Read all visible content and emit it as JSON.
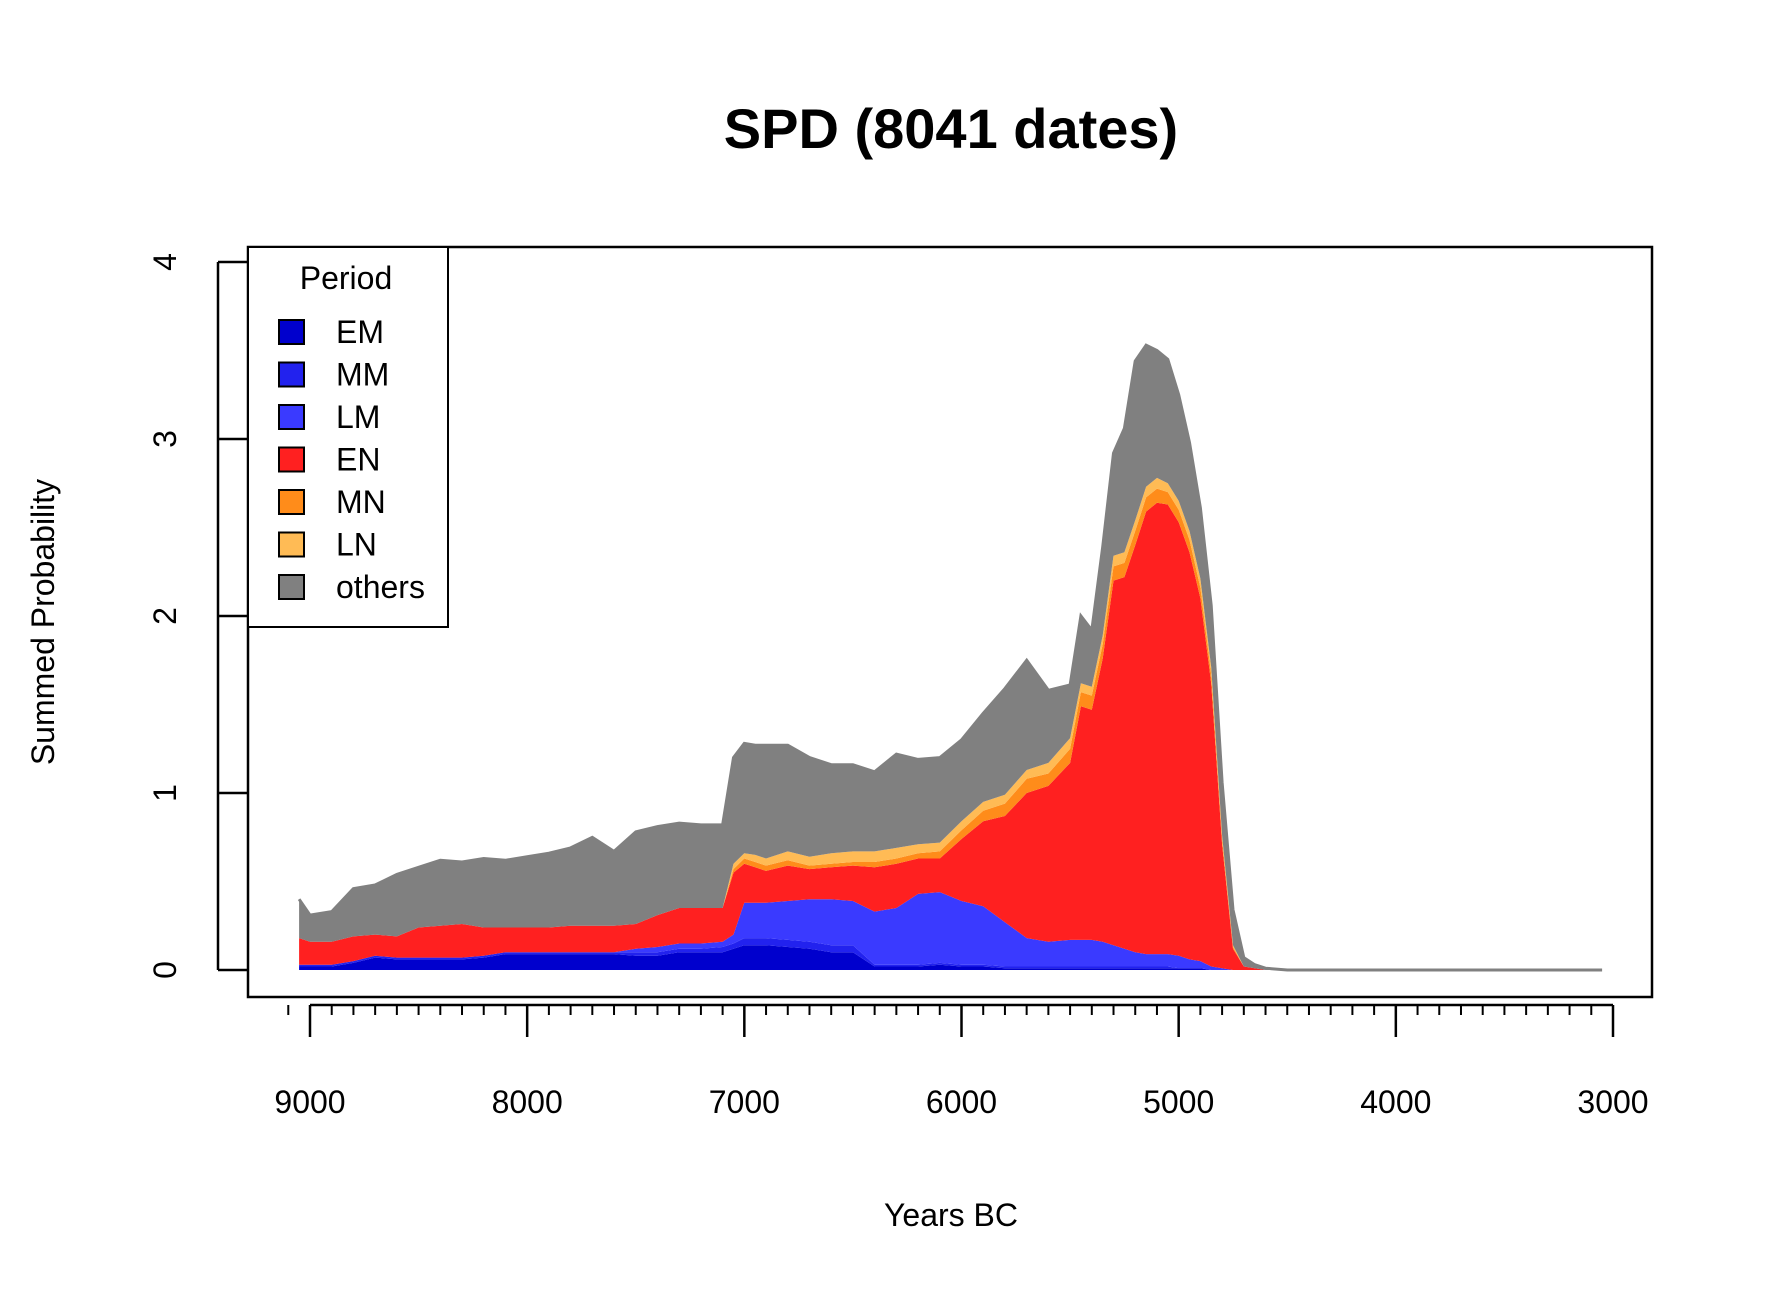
{
  "chart_data": {
    "type": "area",
    "stacked": true,
    "title": "SPD (8041 dates)",
    "xlabel": "Years BC",
    "ylabel": "Summed Probability",
    "xlim": [
      9250,
      2950
    ],
    "ylim": [
      0,
      4
    ],
    "x_ticks": [
      9000,
      8000,
      7000,
      6000,
      5000,
      4000,
      3000
    ],
    "x_tick_labels": [
      "9000",
      "8000",
      "7000",
      "6000",
      "5000",
      "4000",
      "3000"
    ],
    "y_ticks": [
      0,
      1,
      2,
      3,
      4
    ],
    "y_tick_labels": [
      "0",
      "1",
      "2",
      "3",
      "4"
    ],
    "x_minor_tick_step": 100,
    "legend": {
      "title": "Period",
      "position": "top-left"
    },
    "x": [
      9050,
      9000,
      8900,
      8800,
      8700,
      8600,
      8500,
      8400,
      8300,
      8200,
      8100,
      8000,
      7900,
      7800,
      7700,
      7600,
      7500,
      7400,
      7300,
      7200,
      7100,
      7050,
      7000,
      6950,
      6900,
      6800,
      6700,
      6600,
      6500,
      6400,
      6300,
      6200,
      6100,
      6000,
      5900,
      5800,
      5700,
      5600,
      5500,
      5450,
      5400,
      5350,
      5300,
      5250,
      5200,
      5150,
      5100,
      5050,
      5000,
      4950,
      4900,
      4850,
      4800,
      4750,
      4700,
      4650,
      4600,
      4500,
      4000,
      3500,
      3050
    ],
    "series": [
      {
        "name": "EM",
        "color": "#0000CD",
        "values": [
          0.02,
          0.02,
          0.02,
          0.04,
          0.07,
          0.06,
          0.06,
          0.06,
          0.06,
          0.07,
          0.09,
          0.09,
          0.09,
          0.09,
          0.09,
          0.09,
          0.08,
          0.08,
          0.1,
          0.1,
          0.1,
          0.12,
          0.14,
          0.14,
          0.14,
          0.13,
          0.12,
          0.1,
          0.1,
          0.02,
          0.02,
          0.02,
          0.03,
          0.02,
          0.02,
          0.01,
          0.01,
          0.01,
          0.01,
          0.01,
          0.01,
          0.01,
          0.01,
          0.01,
          0.01,
          0.01,
          0.01,
          0.01,
          0.01,
          0.01,
          0.01,
          0.0,
          0.0,
          0.0,
          0.0,
          0.0,
          0.0,
          0.0,
          0.0,
          0.0,
          0.0
        ]
      },
      {
        "name": "MM",
        "color": "#2222EE",
        "values": [
          0.01,
          0.01,
          0.01,
          0.01,
          0.01,
          0.01,
          0.01,
          0.01,
          0.01,
          0.01,
          0.01,
          0.01,
          0.01,
          0.01,
          0.01,
          0.01,
          0.02,
          0.02,
          0.02,
          0.02,
          0.03,
          0.03,
          0.04,
          0.04,
          0.04,
          0.04,
          0.04,
          0.04,
          0.04,
          0.01,
          0.01,
          0.01,
          0.01,
          0.01,
          0.01,
          0.01,
          0.01,
          0.01,
          0.01,
          0.01,
          0.01,
          0.01,
          0.01,
          0.01,
          0.01,
          0.01,
          0.01,
          0.01,
          0.0,
          0.0,
          0.0,
          0.0,
          0.0,
          0.0,
          0.0,
          0.0,
          0.0,
          0.0,
          0.0,
          0.0,
          0.0
        ]
      },
      {
        "name": "LM",
        "color": "#3A3AFF",
        "values": [
          0.0,
          0.0,
          0.0,
          0.0,
          0.0,
          0.0,
          0.0,
          0.0,
          0.0,
          0.0,
          0.0,
          0.0,
          0.0,
          0.0,
          0.0,
          0.0,
          0.02,
          0.03,
          0.03,
          0.03,
          0.03,
          0.05,
          0.2,
          0.2,
          0.2,
          0.22,
          0.24,
          0.26,
          0.25,
          0.3,
          0.32,
          0.4,
          0.4,
          0.36,
          0.33,
          0.25,
          0.16,
          0.14,
          0.15,
          0.15,
          0.15,
          0.14,
          0.12,
          0.1,
          0.08,
          0.07,
          0.07,
          0.07,
          0.07,
          0.05,
          0.04,
          0.02,
          0.01,
          0.0,
          0.0,
          0.0,
          0.0,
          0.0,
          0.0,
          0.0,
          0.0
        ]
      },
      {
        "name": "EN",
        "color": "#FF2020",
        "values": [
          0.15,
          0.13,
          0.13,
          0.14,
          0.12,
          0.12,
          0.17,
          0.18,
          0.19,
          0.16,
          0.14,
          0.14,
          0.14,
          0.15,
          0.15,
          0.15,
          0.14,
          0.18,
          0.2,
          0.2,
          0.19,
          0.35,
          0.22,
          0.2,
          0.18,
          0.2,
          0.17,
          0.18,
          0.2,
          0.25,
          0.25,
          0.2,
          0.19,
          0.35,
          0.48,
          0.6,
          0.82,
          0.88,
          1.0,
          1.32,
          1.3,
          1.6,
          2.06,
          2.1,
          2.3,
          2.5,
          2.55,
          2.54,
          2.45,
          2.3,
          2.05,
          1.6,
          0.7,
          0.12,
          0.02,
          0.01,
          0.0,
          0.0,
          0.0,
          0.0,
          0.0
        ]
      },
      {
        "name": "MN",
        "color": "#FF8C1A",
        "values": [
          0.0,
          0.0,
          0.0,
          0.0,
          0.0,
          0.0,
          0.0,
          0.0,
          0.0,
          0.0,
          0.0,
          0.0,
          0.0,
          0.0,
          0.0,
          0.0,
          0.0,
          0.0,
          0.0,
          0.0,
          0.0,
          0.02,
          0.03,
          0.03,
          0.03,
          0.03,
          0.02,
          0.02,
          0.02,
          0.03,
          0.03,
          0.03,
          0.04,
          0.05,
          0.06,
          0.07,
          0.08,
          0.07,
          0.08,
          0.08,
          0.08,
          0.08,
          0.08,
          0.08,
          0.08,
          0.08,
          0.08,
          0.07,
          0.07,
          0.07,
          0.06,
          0.05,
          0.03,
          0.01,
          0.0,
          0.0,
          0.0,
          0.0,
          0.0,
          0.0,
          0.0
        ]
      },
      {
        "name": "LN",
        "color": "#FFBB55",
        "values": [
          0.0,
          0.0,
          0.0,
          0.0,
          0.0,
          0.0,
          0.0,
          0.0,
          0.0,
          0.0,
          0.0,
          0.0,
          0.0,
          0.0,
          0.0,
          0.0,
          0.0,
          0.0,
          0.0,
          0.0,
          0.0,
          0.03,
          0.03,
          0.04,
          0.04,
          0.05,
          0.05,
          0.06,
          0.06,
          0.06,
          0.06,
          0.05,
          0.05,
          0.05,
          0.05,
          0.05,
          0.05,
          0.06,
          0.06,
          0.05,
          0.05,
          0.05,
          0.06,
          0.06,
          0.06,
          0.06,
          0.06,
          0.05,
          0.05,
          0.05,
          0.05,
          0.04,
          0.02,
          0.01,
          0.0,
          0.0,
          0.0,
          0.0,
          0.0,
          0.0,
          0.0
        ]
      },
      {
        "name": "others",
        "color": "#808080",
        "values": [
          0.22,
          0.15,
          0.17,
          0.27,
          0.28,
          0.35,
          0.34,
          0.37,
          0.35,
          0.39,
          0.38,
          0.4,
          0.42,
          0.44,
          0.5,
          0.42,
          0.52,
          0.5,
          0.48,
          0.47,
          0.47,
          0.6,
          0.62,
          0.62,
          0.64,
          0.6,
          0.56,
          0.5,
          0.49,
          0.45,
          0.53,
          0.48,
          0.48,
          0.46,
          0.5,
          0.6,
          0.62,
          0.41,
          0.3,
          0.38,
          0.32,
          0.5,
          0.58,
          0.7,
          0.9,
          0.8,
          0.72,
          0.7,
          0.6,
          0.5,
          0.4,
          0.35,
          0.3,
          0.2,
          0.05,
          0.02,
          0.01,
          0.0,
          0.0,
          0.0,
          0.0
        ]
      }
    ]
  }
}
